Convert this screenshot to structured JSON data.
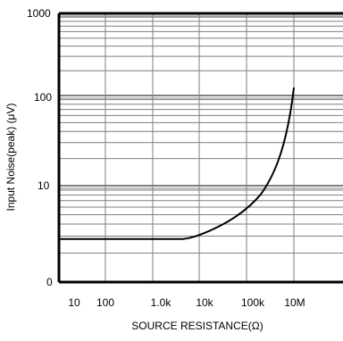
{
  "chart_data": {
    "type": "line",
    "title": "",
    "xlabel": "SOURCE RESISTANCE(Ω)",
    "ylabel": "Input Noise(peak) (μV)",
    "x_tick_labels": [
      "10",
      "100",
      "1.0k",
      "10k",
      "100k",
      "10M"
    ],
    "y_tick_labels": [
      "0",
      "10",
      "100",
      "1000"
    ],
    "ylim": [
      0,
      1000
    ],
    "grid": true,
    "legend": "none",
    "series": [
      {
        "points": [
          {
            "x": "10",
            "y": 2.8
          },
          {
            "x": "100",
            "y": 2.8
          },
          {
            "x": "1.0k",
            "y": 2.8
          },
          {
            "x": "10k",
            "y": 3.0
          },
          {
            "x": "100k",
            "y": 4.5
          },
          {
            "x": "10M",
            "y": 125
          }
        ]
      }
    ],
    "colors": {
      "line": "#000000",
      "grid": "#7f7f7f",
      "axis": "#000000"
    }
  }
}
